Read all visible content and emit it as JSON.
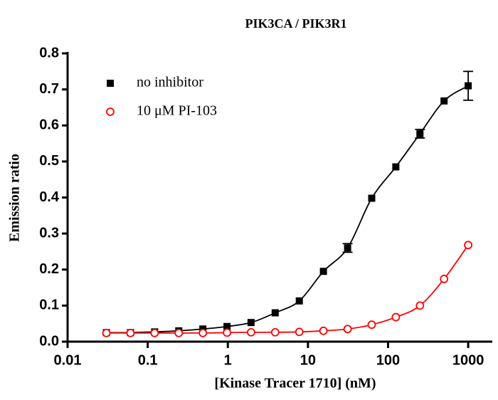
{
  "chart_data": {
    "type": "scatter",
    "title": "PIK3CA / PIK3R1",
    "x_label": "[Kinase Tracer 1710] (nM)",
    "y_label": "Emission ratio",
    "x": [
      0.0305,
      0.061,
      0.122,
      0.244,
      0.488,
      0.977,
      1.95,
      3.9,
      7.8,
      15.6,
      31.25,
      62.5,
      125,
      250,
      500,
      1000
    ],
    "series": [
      {
        "name": "no inhibitor",
        "color": "#000000",
        "marker": "square",
        "values": [
          0.025,
          0.025,
          0.027,
          0.03,
          0.035,
          0.042,
          0.053,
          0.08,
          0.113,
          0.195,
          0.26,
          0.398,
          0.485,
          0.577,
          0.668,
          0.71
        ],
        "errors": [
          null,
          null,
          null,
          null,
          null,
          null,
          null,
          null,
          null,
          null,
          0.012,
          null,
          null,
          0.012,
          null,
          0.04
        ]
      },
      {
        "name": "10 μM PI-103",
        "color": "#ff0000",
        "marker": "open-circle",
        "values": [
          0.024,
          0.024,
          0.024,
          0.024,
          0.024,
          0.025,
          0.026,
          0.026,
          0.027,
          0.03,
          0.035,
          0.047,
          0.068,
          0.1,
          0.174,
          0.268
        ]
      }
    ],
    "x_scale": "log",
    "xlim": [
      0.01,
      2000
    ],
    "xticks": [
      0.01,
      0.1,
      1,
      10,
      100,
      1000
    ],
    "ylim": [
      0,
      0.8
    ],
    "yticks": [
      {
        "value": 0,
        "label": "0.0"
      },
      0.1,
      0.2,
      0.3,
      0.4,
      0.5,
      0.6,
      0.7,
      0.8
    ],
    "legend": "upper-left",
    "grid": false
  }
}
